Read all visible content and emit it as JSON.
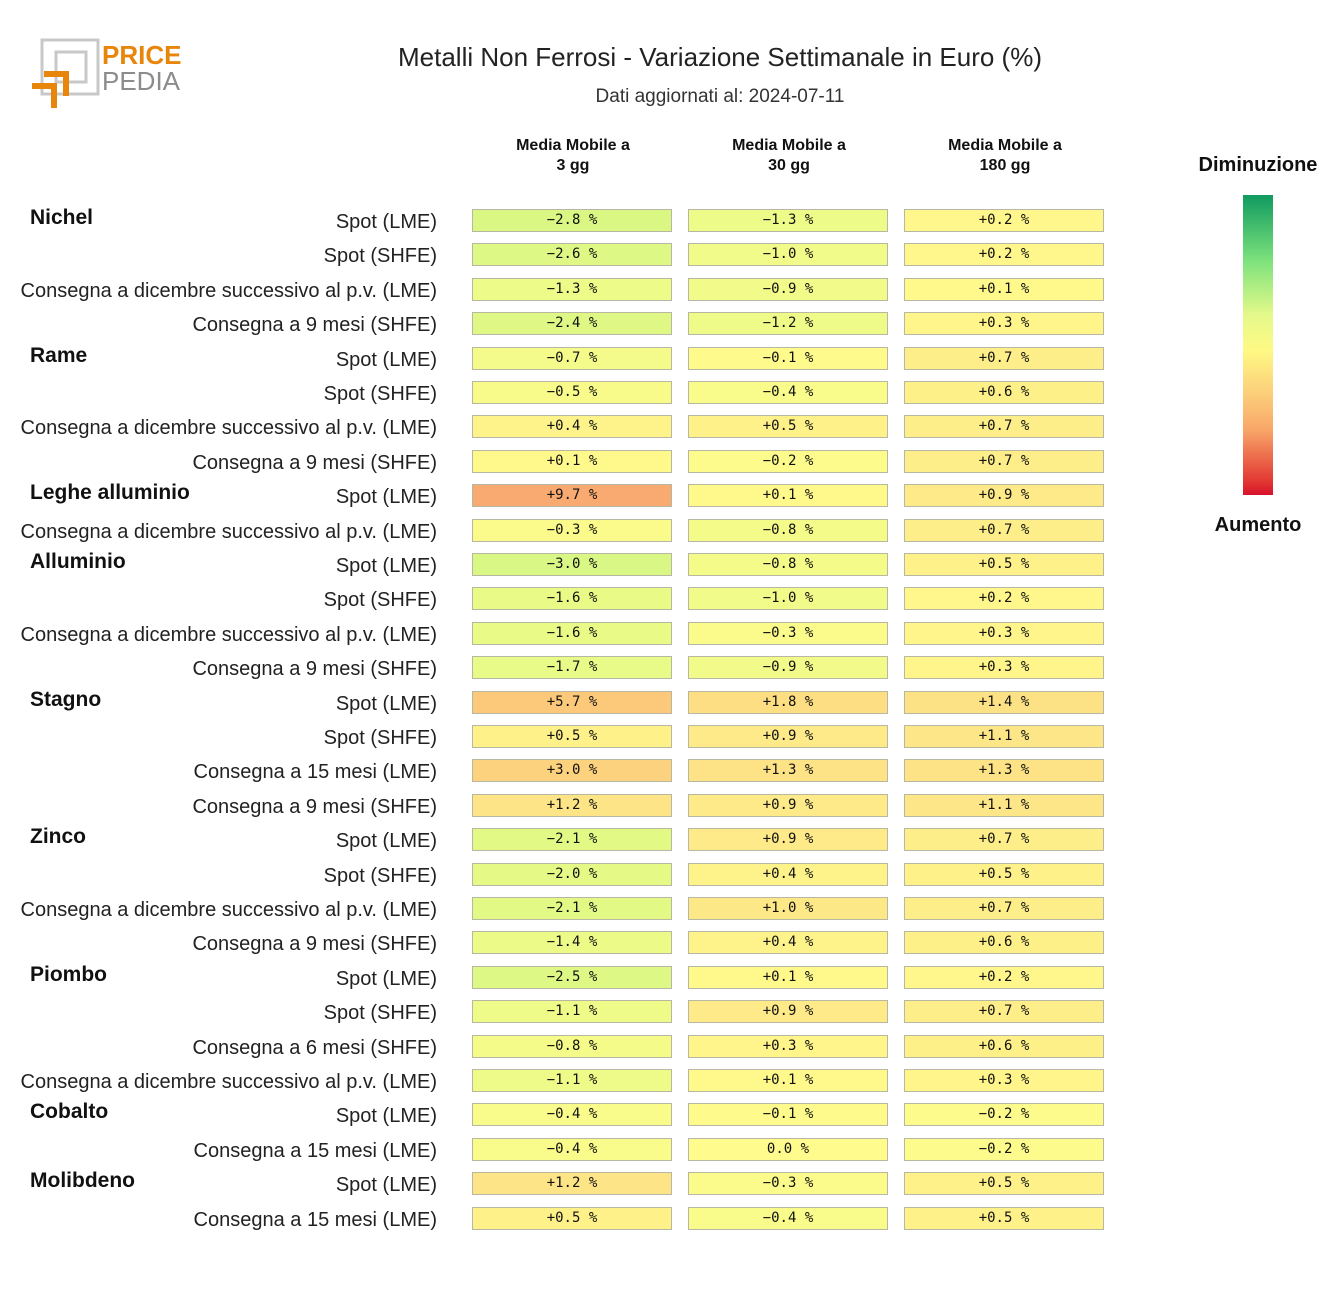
{
  "logo": {
    "word1": "PRICE",
    "word2": "PEDIA",
    "accent": "#e8860c",
    "gray": "#8c8c8c"
  },
  "chart_data": {
    "type": "heatmap",
    "title": "Metalli Non Ferrosi - Variazione Settimanale in Euro (%)",
    "subtitle": "Dati aggiornati al: 2024-07-11",
    "columns": [
      {
        "line1": "Media Mobile a",
        "line2": "3 gg"
      },
      {
        "line1": "Media Mobile a",
        "line2": "30 gg"
      },
      {
        "line1": "Media Mobile a",
        "line2": "180 gg"
      }
    ],
    "legend": {
      "top": "Diminuzione",
      "bottom": "Aumento"
    },
    "color_scale": {
      "decrease": "#109a60",
      "neutral": "#fff984",
      "increase": "#d7112b"
    },
    "value_format": "signed percent with one decimal",
    "groups": [
      {
        "name": "Nichel",
        "rows": [
          {
            "label": "Spot (LME)",
            "values": [
              -2.8,
              -1.3,
              0.2
            ]
          },
          {
            "label": "Spot (SHFE)",
            "values": [
              -2.6,
              -1.0,
              0.2
            ]
          },
          {
            "label": "Consegna a dicembre successivo al p.v. (LME)",
            "values": [
              -1.3,
              -0.9,
              0.1
            ]
          },
          {
            "label": "Consegna a 9 mesi (SHFE)",
            "values": [
              -2.4,
              -1.2,
              0.3
            ]
          }
        ]
      },
      {
        "name": "Rame",
        "rows": [
          {
            "label": "Spot (LME)",
            "values": [
              -0.7,
              -0.1,
              0.7
            ]
          },
          {
            "label": "Spot (SHFE)",
            "values": [
              -0.5,
              -0.4,
              0.6
            ]
          },
          {
            "label": "Consegna a dicembre successivo al p.v. (LME)",
            "values": [
              0.4,
              0.5,
              0.7
            ]
          },
          {
            "label": "Consegna a 9 mesi (SHFE)",
            "values": [
              0.1,
              -0.2,
              0.7
            ]
          }
        ]
      },
      {
        "name": "Leghe alluminio",
        "rows": [
          {
            "label": "Spot (LME)",
            "values": [
              9.7,
              0.1,
              0.9
            ]
          },
          {
            "label": "Consegna a dicembre successivo al p.v. (LME)",
            "values": [
              -0.3,
              -0.8,
              0.7
            ]
          }
        ]
      },
      {
        "name": "Alluminio",
        "rows": [
          {
            "label": "Spot (LME)",
            "values": [
              -3.0,
              -0.8,
              0.5
            ]
          },
          {
            "label": "Spot (SHFE)",
            "values": [
              -1.6,
              -1.0,
              0.2
            ]
          },
          {
            "label": "Consegna a dicembre successivo al p.v. (LME)",
            "values": [
              -1.6,
              -0.3,
              0.3
            ]
          },
          {
            "label": "Consegna a 9 mesi (SHFE)",
            "values": [
              -1.7,
              -0.9,
              0.3
            ]
          }
        ]
      },
      {
        "name": "Stagno",
        "rows": [
          {
            "label": "Spot (LME)",
            "values": [
              5.7,
              1.8,
              1.4
            ]
          },
          {
            "label": "Spot (SHFE)",
            "values": [
              0.5,
              0.9,
              1.1
            ]
          },
          {
            "label": "Consegna a 15 mesi (LME)",
            "values": [
              3.0,
              1.3,
              1.3
            ]
          },
          {
            "label": "Consegna a 9 mesi (SHFE)",
            "values": [
              1.2,
              0.9,
              1.1
            ]
          }
        ]
      },
      {
        "name": "Zinco",
        "rows": [
          {
            "label": "Spot (LME)",
            "values": [
              -2.1,
              0.9,
              0.7
            ]
          },
          {
            "label": "Spot (SHFE)",
            "values": [
              -2.0,
              0.4,
              0.5
            ]
          },
          {
            "label": "Consegna a dicembre successivo al p.v. (LME)",
            "values": [
              -2.1,
              1.0,
              0.7
            ]
          },
          {
            "label": "Consegna a 9 mesi (SHFE)",
            "values": [
              -1.4,
              0.4,
              0.6
            ]
          }
        ]
      },
      {
        "name": "Piombo",
        "rows": [
          {
            "label": "Spot (LME)",
            "values": [
              -2.5,
              0.1,
              0.2
            ]
          },
          {
            "label": "Spot (SHFE)",
            "values": [
              -1.1,
              0.9,
              0.7
            ]
          },
          {
            "label": "Consegna a 6 mesi (SHFE)",
            "values": [
              -0.8,
              0.3,
              0.6
            ]
          },
          {
            "label": "Consegna a dicembre successivo al p.v. (LME)",
            "values": [
              -1.1,
              0.1,
              0.3
            ]
          }
        ]
      },
      {
        "name": "Cobalto",
        "rows": [
          {
            "label": "Spot (LME)",
            "values": [
              -0.4,
              -0.1,
              -0.2
            ]
          },
          {
            "label": "Consegna a 15 mesi (LME)",
            "values": [
              -0.4,
              0.0,
              -0.2
            ]
          }
        ]
      },
      {
        "name": "Molibdeno",
        "rows": [
          {
            "label": "Spot (LME)",
            "values": [
              1.2,
              -0.3,
              0.5
            ]
          },
          {
            "label": "Consegna a 15 mesi (LME)",
            "values": [
              0.5,
              -0.4,
              0.5
            ]
          }
        ]
      }
    ]
  }
}
